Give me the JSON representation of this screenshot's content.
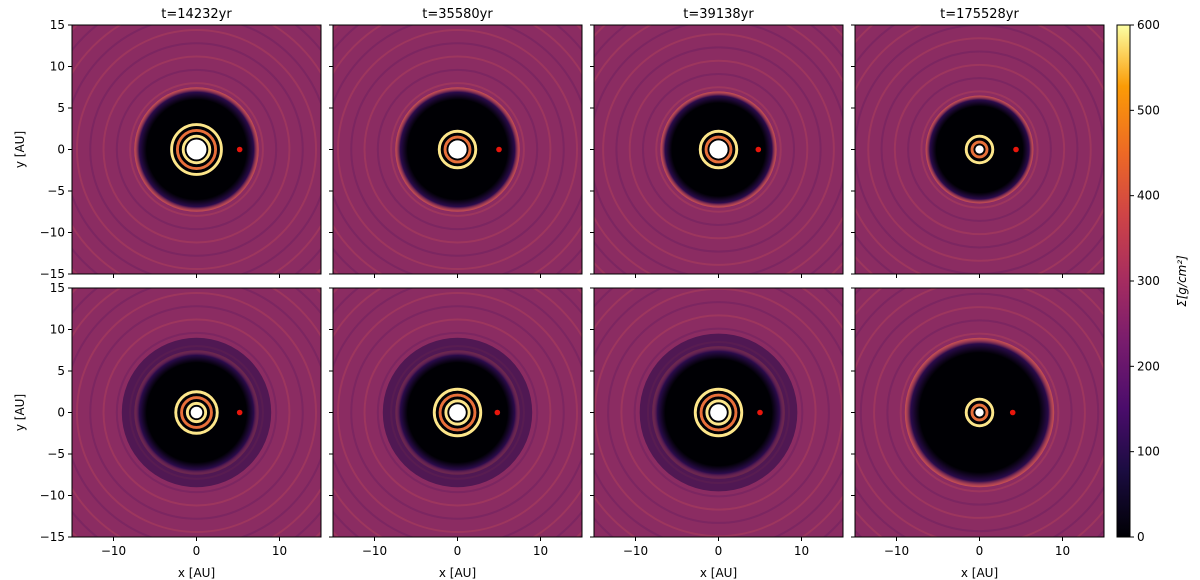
{
  "chart_data": [
    {
      "type": "heatmap",
      "title": "t=14232yr",
      "ylabel": "y [AU]",
      "xlim": [
        -15,
        15
      ],
      "ylim": [
        -15,
        15
      ],
      "xticks": [
        {
          "value": -10,
          "label": "−10"
        },
        0,
        10
      ],
      "yticks": [
        {
          "value": -15,
          "label": "−15"
        },
        {
          "value": -10,
          "label": "−10"
        },
        {
          "value": -5,
          "label": "−5"
        },
        0,
        5,
        10,
        15
      ],
      "planet": {
        "x": 5.2,
        "y": 0,
        "color": "#e8160c"
      }
    },
    {
      "type": "heatmap",
      "title": "t=35580yr",
      "xlim": [
        -15,
        15
      ],
      "ylim": [
        -15,
        15
      ],
      "xticks": [
        {
          "value": -10,
          "label": "−10"
        },
        0,
        10
      ],
      "yticks": [
        {
          "value": -15,
          "label": "−15"
        },
        {
          "value": -10,
          "label": "−10"
        },
        {
          "value": -5,
          "label": "−5"
        },
        0,
        5,
        10,
        15
      ],
      "planet": {
        "x": 5,
        "y": 0,
        "color": "#e8160c"
      }
    },
    {
      "type": "heatmap",
      "title": "t=39138yr",
      "xlim": [
        -15,
        15
      ],
      "ylim": [
        -15,
        15
      ],
      "xticks": [
        {
          "value": -10,
          "label": "−10"
        },
        0,
        10
      ],
      "yticks": [
        {
          "value": -15,
          "label": "−15"
        },
        {
          "value": -10,
          "label": "−10"
        },
        {
          "value": -5,
          "label": "−5"
        },
        0,
        5,
        10,
        15
      ],
      "planet": {
        "x": 4.8,
        "y": 0,
        "color": "#e8160c"
      }
    },
    {
      "type": "heatmap",
      "title": "t=175528yr",
      "xlim": [
        -15,
        15
      ],
      "ylim": [
        -15,
        15
      ],
      "xticks": [
        {
          "value": -10,
          "label": "−10"
        },
        0,
        10
      ],
      "yticks": [
        {
          "value": -15,
          "label": "−15"
        },
        {
          "value": -10,
          "label": "−10"
        },
        {
          "value": -5,
          "label": "−5"
        },
        0,
        5,
        10,
        15
      ],
      "planet": {
        "x": 4.4,
        "y": 0,
        "color": "#e8160c"
      }
    },
    {
      "type": "heatmap",
      "xlabel": "x [AU]",
      "ylabel": "y [AU]",
      "xlim": [
        -15,
        15
      ],
      "ylim": [
        -15,
        15
      ],
      "xticks": [
        {
          "value": -10,
          "label": "−10"
        },
        0,
        10
      ],
      "yticks": [
        {
          "value": -15,
          "label": "−15"
        },
        {
          "value": -10,
          "label": "−10"
        },
        {
          "value": -5,
          "label": "−5"
        },
        0,
        5,
        10,
        15
      ],
      "planet": {
        "x": 5.2,
        "y": 0,
        "color": "#e8160c"
      }
    },
    {
      "type": "heatmap",
      "xlabel": "x [AU]",
      "xlim": [
        -15,
        15
      ],
      "ylim": [
        -15,
        15
      ],
      "xticks": [
        {
          "value": -10,
          "label": "−10"
        },
        0,
        10
      ],
      "yticks": [
        {
          "value": -15,
          "label": "−15"
        },
        {
          "value": -10,
          "label": "−10"
        },
        {
          "value": -5,
          "label": "−5"
        },
        0,
        5,
        10,
        15
      ],
      "planet": {
        "x": 4.8,
        "y": 0,
        "color": "#e8160c"
      }
    },
    {
      "type": "heatmap",
      "xlabel": "x [AU]",
      "xlim": [
        -15,
        15
      ],
      "ylim": [
        -15,
        15
      ],
      "xticks": [
        {
          "value": -10,
          "label": "−10"
        },
        0,
        10
      ],
      "yticks": [
        {
          "value": -15,
          "label": "−15"
        },
        {
          "value": -10,
          "label": "−10"
        },
        {
          "value": -5,
          "label": "−5"
        },
        0,
        5,
        10,
        15
      ],
      "planet": {
        "x": 5,
        "y": 0,
        "color": "#e8160c"
      }
    },
    {
      "type": "heatmap",
      "xlabel": "x [AU]",
      "xlim": [
        -15,
        15
      ],
      "ylim": [
        -15,
        15
      ],
      "xticks": [
        {
          "value": -10,
          "label": "−10"
        },
        0,
        10
      ],
      "yticks": [
        {
          "value": -15,
          "label": "−15"
        },
        {
          "value": -10,
          "label": "−10"
        },
        {
          "value": -5,
          "label": "−5"
        },
        0,
        5,
        10,
        15
      ],
      "planet": {
        "x": 4,
        "y": 0,
        "color": "#e8160c"
      }
    }
  ],
  "colorbar": {
    "label": "Σ[g/cm²]",
    "colormap": "inferno",
    "lim": [
      0,
      600
    ],
    "ticks": [
      0,
      100,
      200,
      300,
      400,
      500,
      600
    ]
  }
}
